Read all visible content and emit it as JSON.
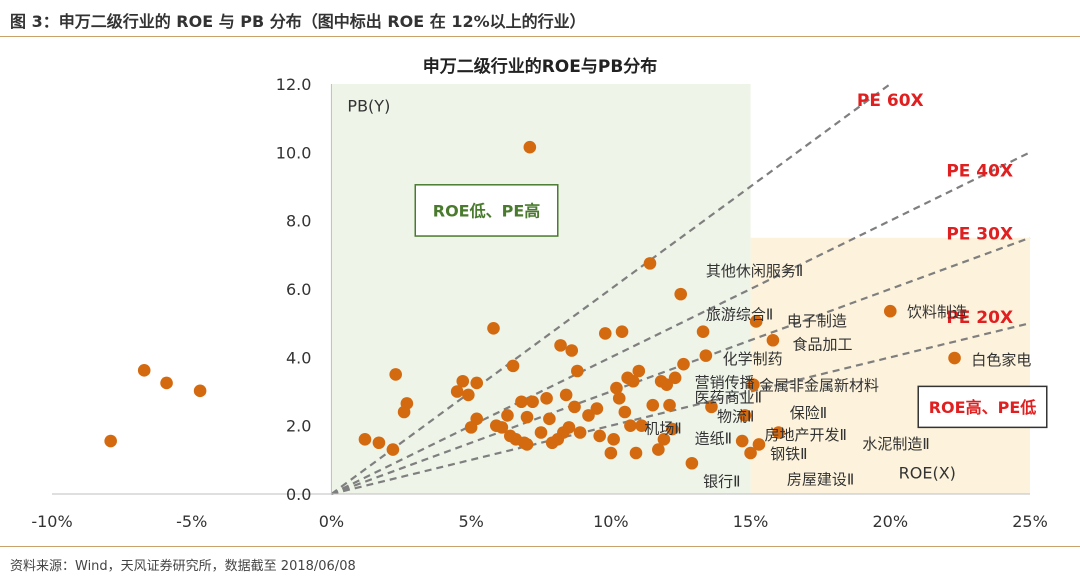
{
  "header": {
    "caption": "图 3：申万二级行业的 ROE 与 PB 分布（图中标出 ROE 在 12%以上的行业）"
  },
  "footer": {
    "source": "资料来源：Wind，天风证券研究所，数据截至 2018/06/08"
  },
  "chart_data": {
    "type": "scatter",
    "title": "申万二级行业的ROE与PB分布",
    "xlabel": "ROE(X)",
    "ylabel": "PB(Y)",
    "xlim": [
      -10,
      25
    ],
    "ylim": [
      0,
      12
    ],
    "x_ticks": [
      "-10%",
      "-5%",
      "0%",
      "5%",
      "10%",
      "15%",
      "20%",
      "25%"
    ],
    "y_ticks": [
      "0.0",
      "2.0",
      "4.0",
      "6.0",
      "8.0",
      "10.0",
      "12.0"
    ],
    "grid": false,
    "colors": {
      "points": "#d46a10",
      "lines": "#7f7f7f",
      "pe_labels": "#e02020",
      "low_roe_region": "#eef4e8",
      "high_roe_region": "#fdf3dc",
      "low_roe_box": "#4a7a2e",
      "high_roe_box": "#e02020"
    },
    "pe_lines": [
      {
        "label": "PE 60X",
        "pe": 60
      },
      {
        "label": "PE 40X",
        "pe": 40
      },
      {
        "label": "PE 30X",
        "pe": 30
      },
      {
        "label": "PE 20X",
        "pe": 20
      }
    ],
    "regions": [
      {
        "label": "ROE低、PE高"
      },
      {
        "label": "ROE高、PE低"
      }
    ],
    "points": [
      {
        "x": -7.9,
        "y": 1.55
      },
      {
        "x": -6.7,
        "y": 3.62
      },
      {
        "x": -5.9,
        "y": 3.25
      },
      {
        "x": -4.7,
        "y": 3.02
      },
      {
        "x": 1.2,
        "y": 1.6
      },
      {
        "x": 1.7,
        "y": 1.5
      },
      {
        "x": 2.2,
        "y": 1.3
      },
      {
        "x": 2.3,
        "y": 3.5
      },
      {
        "x": 2.6,
        "y": 2.4
      },
      {
        "x": 2.7,
        "y": 2.65
      },
      {
        "x": 4.5,
        "y": 3.0
      },
      {
        "x": 4.7,
        "y": 3.3
      },
      {
        "x": 4.9,
        "y": 2.9
      },
      {
        "x": 5.0,
        "y": 1.95
      },
      {
        "x": 5.2,
        "y": 3.25
      },
      {
        "x": 5.2,
        "y": 2.2
      },
      {
        "x": 5.8,
        "y": 4.85
      },
      {
        "x": 5.9,
        "y": 2.0
      },
      {
        "x": 6.1,
        "y": 1.95
      },
      {
        "x": 6.3,
        "y": 2.3
      },
      {
        "x": 6.4,
        "y": 1.7
      },
      {
        "x": 6.5,
        "y": 3.75
      },
      {
        "x": 6.6,
        "y": 1.6
      },
      {
        "x": 6.8,
        "y": 2.7
      },
      {
        "x": 6.9,
        "y": 1.5
      },
      {
        "x": 7.0,
        "y": 2.25
      },
      {
        "x": 7.0,
        "y": 1.45
      },
      {
        "x": 7.1,
        "y": 10.15
      },
      {
        "x": 7.2,
        "y": 2.7
      },
      {
        "x": 7.5,
        "y": 1.8
      },
      {
        "x": 7.7,
        "y": 2.8
      },
      {
        "x": 7.8,
        "y": 2.2
      },
      {
        "x": 7.9,
        "y": 1.5
      },
      {
        "x": 8.1,
        "y": 1.6
      },
      {
        "x": 8.2,
        "y": 4.35
      },
      {
        "x": 8.3,
        "y": 1.8
      },
      {
        "x": 8.4,
        "y": 2.9
      },
      {
        "x": 8.5,
        "y": 1.95
      },
      {
        "x": 8.6,
        "y": 4.2
      },
      {
        "x": 8.7,
        "y": 2.55
      },
      {
        "x": 8.8,
        "y": 3.6
      },
      {
        "x": 8.9,
        "y": 1.8
      },
      {
        "x": 9.2,
        "y": 2.3
      },
      {
        "x": 9.5,
        "y": 2.5
      },
      {
        "x": 9.6,
        "y": 1.7
      },
      {
        "x": 9.8,
        "y": 4.7
      },
      {
        "x": 10.0,
        "y": 1.2
      },
      {
        "x": 10.1,
        "y": 1.6
      },
      {
        "x": 10.2,
        "y": 3.1
      },
      {
        "x": 10.3,
        "y": 2.8
      },
      {
        "x": 10.4,
        "y": 4.75
      },
      {
        "x": 10.5,
        "y": 2.4
      },
      {
        "x": 10.6,
        "y": 3.4
      },
      {
        "x": 10.7,
        "y": 2.0
      },
      {
        "x": 10.8,
        "y": 3.3
      },
      {
        "x": 10.9,
        "y": 1.2
      },
      {
        "x": 11.0,
        "y": 3.6
      },
      {
        "x": 11.1,
        "y": 2.0
      },
      {
        "x": 11.4,
        "y": 6.75
      },
      {
        "x": 11.5,
        "y": 2.6
      },
      {
        "x": 11.7,
        "y": 1.3
      },
      {
        "x": 11.8,
        "y": 3.3
      },
      {
        "x": 11.9,
        "y": 1.6
      },
      {
        "x": 12.0,
        "y": 3.2
      },
      {
        "x": 12.1,
        "y": 2.6
      },
      {
        "x": 12.2,
        "y": 1.9
      },
      {
        "x": 12.3,
        "y": 3.4
      },
      {
        "x": 12.5,
        "y": 5.85
      },
      {
        "x": 12.6,
        "y": 3.8
      },
      {
        "x": 12.9,
        "y": 0.9
      },
      {
        "x": 13.3,
        "y": 4.75
      },
      {
        "x": 13.4,
        "y": 4.05
      },
      {
        "x": 13.6,
        "y": 2.55
      },
      {
        "x": 14.7,
        "y": 1.55
      },
      {
        "x": 14.8,
        "y": 2.3
      },
      {
        "x": 15.0,
        "y": 1.2
      },
      {
        "x": 15.1,
        "y": 3.2
      },
      {
        "x": 15.3,
        "y": 1.45
      },
      {
        "x": 15.2,
        "y": 5.05
      },
      {
        "x": 15.8,
        "y": 4.5
      },
      {
        "x": 16.0,
        "y": 1.8
      },
      {
        "x": 20.0,
        "y": 5.35
      },
      {
        "x": 22.3,
        "y": 3.98
      }
    ],
    "annotations": [
      {
        "text": "其他休闲服务Ⅱ",
        "x": 13.4,
        "y": 6.55
      },
      {
        "text": "旅游综合Ⅱ",
        "x": 13.4,
        "y": 5.28
      },
      {
        "text": "电子制造",
        "x": 16.3,
        "y": 5.1
      },
      {
        "text": "饮料制造",
        "x": 20.6,
        "y": 5.35
      },
      {
        "text": "食品加工",
        "x": 16.5,
        "y": 4.4
      },
      {
        "text": "化学制药",
        "x": 14.0,
        "y": 3.98
      },
      {
        "text": "白色家电",
        "x": 22.9,
        "y": 3.95
      },
      {
        "text": "营销传播",
        "x": 13.0,
        "y": 3.3
      },
      {
        "text": "金属非金属新材料",
        "x": 15.3,
        "y": 3.2
      },
      {
        "text": "医药商业Ⅱ",
        "x": 13.0,
        "y": 2.85
      },
      {
        "text": "物流Ⅱ",
        "x": 13.8,
        "y": 2.3
      },
      {
        "text": "保险Ⅱ",
        "x": 16.4,
        "y": 2.4
      },
      {
        "text": "机场Ⅱ",
        "x": 11.2,
        "y": 1.95
      },
      {
        "text": "造纸Ⅱ",
        "x": 13.0,
        "y": 1.65
      },
      {
        "text": "房地产开发Ⅱ",
        "x": 15.5,
        "y": 1.75
      },
      {
        "text": "水泥制造Ⅱ",
        "x": 19.0,
        "y": 1.5
      },
      {
        "text": "钢铁Ⅱ",
        "x": 15.7,
        "y": 1.2
      },
      {
        "text": "银行Ⅱ",
        "x": 13.3,
        "y": 0.4
      },
      {
        "text": "房屋建设Ⅱ",
        "x": 16.3,
        "y": 0.45
      }
    ]
  }
}
